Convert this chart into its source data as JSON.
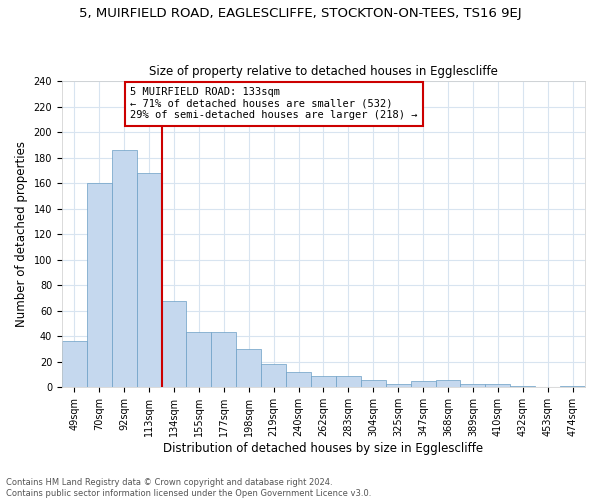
{
  "title": "5, MUIRFIELD ROAD, EAGLESCLIFFE, STOCKTON-ON-TEES, TS16 9EJ",
  "subtitle": "Size of property relative to detached houses in Egglescliffe",
  "xlabel": "Distribution of detached houses by size in Egglescliffe",
  "ylabel": "Number of detached properties",
  "footnote1": "Contains HM Land Registry data © Crown copyright and database right 2024.",
  "footnote2": "Contains public sector information licensed under the Open Government Licence v3.0.",
  "categories": [
    "49sqm",
    "70sqm",
    "92sqm",
    "113sqm",
    "134sqm",
    "155sqm",
    "177sqm",
    "198sqm",
    "219sqm",
    "240sqm",
    "262sqm",
    "283sqm",
    "304sqm",
    "325sqm",
    "347sqm",
    "368sqm",
    "389sqm",
    "410sqm",
    "432sqm",
    "453sqm",
    "474sqm"
  ],
  "values": [
    36,
    160,
    186,
    168,
    68,
    43,
    43,
    30,
    18,
    12,
    9,
    9,
    6,
    3,
    5,
    6,
    3,
    3,
    1,
    0,
    1
  ],
  "bar_color": "#c5d8ee",
  "bar_edge_color": "#6a9ec5",
  "red_line_index": 3,
  "red_line_label": "5 MUIRFIELD ROAD: 133sqm",
  "annotation_line1": "← 71% of detached houses are smaller (532)",
  "annotation_line2": "29% of semi-detached houses are larger (218) →",
  "annotation_box_color": "#cc0000",
  "ylim": [
    0,
    240
  ],
  "yticks": [
    0,
    20,
    40,
    60,
    80,
    100,
    120,
    140,
    160,
    180,
    200,
    220,
    240
  ],
  "bg_color": "#ffffff",
  "grid_color": "#d8e4f0",
  "title_fontsize": 9.5,
  "subtitle_fontsize": 8.5,
  "axis_label_fontsize": 8.5,
  "tick_fontsize": 7,
  "footnote_fontsize": 6
}
